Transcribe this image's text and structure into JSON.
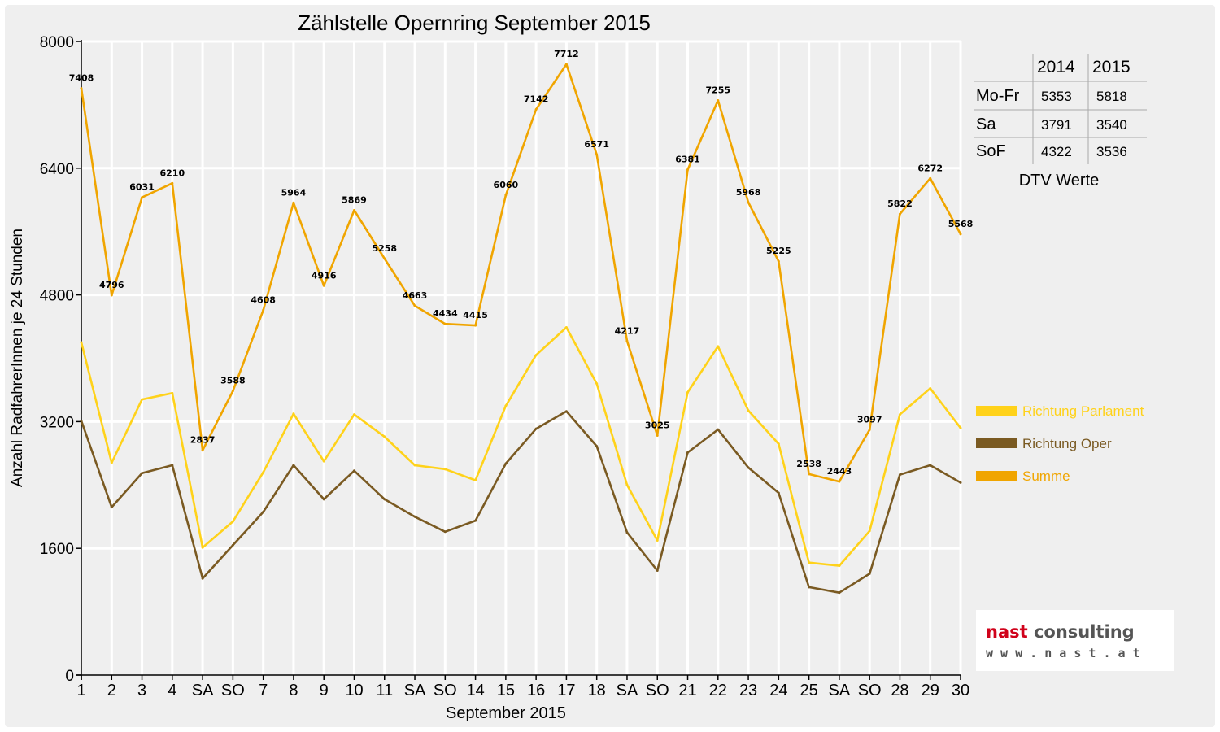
{
  "chart_data": {
    "type": "line",
    "title": "Zählstelle Opernring September 2015",
    "xlabel": "September 2015",
    "ylabel": "Anzahl RadfahrerInnen je 24 Stunden",
    "ylim": [
      0,
      8000
    ],
    "yticks": [
      "0",
      "1600",
      "3200",
      "4800",
      "6400",
      "8000"
    ],
    "grid": true,
    "legend_position": "right",
    "categories": [
      "1",
      "2",
      "3",
      "4",
      "SA",
      "SO",
      "7",
      "8",
      "9",
      "10",
      "11",
      "SA",
      "SO",
      "14",
      "15",
      "16",
      "17",
      "18",
      "SA",
      "SO",
      "21",
      "22",
      "23",
      "24",
      "25",
      "SA",
      "SO",
      "28",
      "29",
      "30"
    ],
    "weekend_red_color": "#ff0000",
    "series": [
      {
        "name": "Richtung Parlament",
        "color": "#ffd21a",
        "values": [
          4200,
          2680,
          3480,
          3560,
          1610,
          1940,
          2560,
          3300,
          2700,
          3290,
          3010,
          2650,
          2600,
          2460,
          3400,
          4040,
          4390,
          3680,
          2400,
          1700,
          3570,
          4150,
          3340,
          2920,
          1420,
          1380,
          1820,
          3290,
          3620,
          3120
        ]
      },
      {
        "name": "Richtung Oper",
        "color": "#7a5a22",
        "values": [
          3210,
          2120,
          2550,
          2650,
          1220,
          1640,
          2060,
          2650,
          2220,
          2580,
          2220,
          2000,
          1810,
          1950,
          2670,
          3110,
          3330,
          2890,
          1800,
          1320,
          2810,
          3100,
          2620,
          2300,
          1110,
          1040,
          1280,
          2530,
          2650,
          2430
        ]
      },
      {
        "name": "Summe",
        "color": "#f0a500",
        "values": [
          7408,
          4796,
          6031,
          6210,
          2837,
          3588,
          4608,
          5964,
          4916,
          5869,
          5258,
          4663,
          4434,
          4415,
          6060,
          7142,
          7712,
          6571,
          4217,
          3025,
          6381,
          7255,
          5968,
          5225,
          2538,
          2443,
          3097,
          5822,
          6272,
          5568
        ]
      }
    ],
    "data_labels": [
      "7408",
      "4796",
      "6031",
      "6210",
      "2837",
      "3588",
      "4608",
      "5964",
      "4916",
      "5869",
      "5258",
      "4663",
      "4434",
      "4415",
      "6060",
      "7142",
      "7712",
      "6571",
      "4217",
      "3025",
      "6381",
      "7255",
      "5968",
      "5225",
      "2538",
      "2443",
      "3097",
      "5822",
      "6272",
      "5568"
    ]
  },
  "dtv_table": {
    "headers": [
      "",
      "2014",
      "2015"
    ],
    "rows": [
      {
        "label": "Mo-Fr",
        "v2014": "5353",
        "v2015": "5818"
      },
      {
        "label": "Sa",
        "v2014": "3791",
        "v2015": "3540"
      },
      {
        "label": "SoF",
        "v2014": "4322",
        "v2015": "3536"
      }
    ],
    "caption": "DTV Werte"
  },
  "logo": {
    "name_part1": "nast",
    "name_part2": " consulting",
    "url": "w w w . n a s t . a t",
    "accent_color": "#d0021b"
  }
}
